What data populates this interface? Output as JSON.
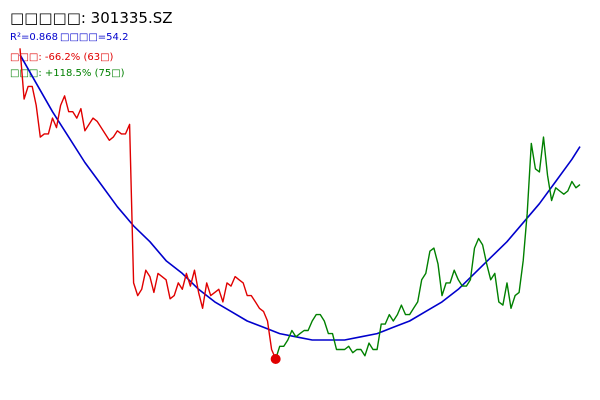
{
  "colors": {
    "background": "#ffffff",
    "decline_color": "#e00000",
    "rise_color": "#008000",
    "fit_color": "#0000cc",
    "fit_label_color": "#0000cc",
    "placeholder_glyph_color": "#cccccc"
  },
  "chart_data": {
    "type": "line",
    "title": "□□□□□: 301335.SZ",
    "annotations": {
      "fit_r2": "R²=0.868",
      "fit_extra": "□□□□=54.2",
      "decline_label": "□□□: -66.2% (63□)",
      "rise_label": "□□□: +118.5% (75□)"
    },
    "x_range": [
      0,
      138
    ],
    "y_range": [
      0,
      100
    ],
    "axes_visible": false,
    "grid": false,
    "legend": "none",
    "low_marker": {
      "index": 63,
      "value": 0,
      "color": "#e00000"
    },
    "series": [
      {
        "name": "decline",
        "color": "#e00000",
        "x": [
          0,
          1,
          2,
          3,
          4,
          5,
          6,
          7,
          8,
          9,
          10,
          11,
          12,
          13,
          14,
          15,
          16,
          17,
          18,
          19,
          20,
          21,
          22,
          23,
          24,
          25,
          26,
          27,
          28,
          29,
          30,
          31,
          32,
          33,
          34,
          35,
          36,
          37,
          38,
          39,
          40,
          41,
          42,
          43,
          44,
          45,
          46,
          47,
          48,
          49,
          50,
          51,
          52,
          53,
          54,
          55,
          56,
          57,
          58,
          59,
          60,
          61,
          62,
          63
        ],
        "y": [
          98,
          82,
          86,
          86,
          80,
          70,
          71,
          71,
          76,
          73,
          80,
          83,
          78,
          78,
          76,
          79,
          72,
          74,
          76,
          75,
          73,
          71,
          69,
          70,
          72,
          71,
          71,
          74,
          24,
          20,
          22,
          28,
          26,
          21,
          27,
          26,
          25,
          19,
          20,
          24,
          22,
          27,
          23,
          28,
          21,
          16,
          24,
          20,
          21,
          22,
          18,
          24,
          23,
          26,
          25,
          24,
          20,
          20,
          18,
          16,
          15,
          12,
          3,
          0
        ]
      },
      {
        "name": "rise",
        "color": "#008000",
        "x": [
          63,
          64,
          65,
          66,
          67,
          68,
          69,
          70,
          71,
          72,
          73,
          74,
          75,
          76,
          77,
          78,
          79,
          80,
          81,
          82,
          83,
          84,
          85,
          86,
          87,
          88,
          89,
          90,
          91,
          92,
          93,
          94,
          95,
          96,
          97,
          98,
          99,
          100,
          101,
          102,
          103,
          104,
          105,
          106,
          107,
          108,
          109,
          110,
          111,
          112,
          113,
          114,
          115,
          116,
          117,
          118,
          119,
          120,
          121,
          122,
          123,
          124,
          125,
          126,
          127,
          128,
          129,
          130,
          131,
          132,
          133,
          134,
          135,
          136,
          137,
          138
        ],
        "y": [
          0,
          4,
          4,
          6,
          9,
          7,
          8,
          9,
          9,
          12,
          14,
          14,
          12,
          8,
          8,
          3,
          3,
          3,
          4,
          2,
          3,
          3,
          1,
          5,
          3,
          3,
          11,
          11,
          14,
          12,
          14,
          17,
          14,
          14,
          16,
          18,
          25,
          27,
          34,
          35,
          30,
          20,
          24,
          24,
          28,
          25,
          23,
          23,
          25,
          35,
          38,
          36,
          30,
          25,
          27,
          18,
          17,
          24,
          16,
          20,
          21,
          31,
          46,
          68,
          60,
          59,
          70,
          58,
          50,
          54,
          53,
          52,
          53,
          56,
          54,
          55
        ]
      },
      {
        "name": "fit",
        "color": "#0000cc",
        "x": [
          0,
          4,
          8,
          12,
          16,
          20,
          24,
          28,
          32,
          36,
          40,
          44,
          48,
          52,
          56,
          60,
          64,
          68,
          72,
          76,
          80,
          84,
          88,
          92,
          96,
          100,
          104,
          108,
          112,
          116,
          120,
          124,
          128,
          132,
          136,
          138
        ],
        "y": [
          96,
          87,
          78,
          70,
          62,
          55,
          48,
          42,
          37,
          31,
          27,
          22,
          18,
          15,
          12,
          10,
          8,
          7,
          6,
          6,
          6,
          7,
          8,
          10,
          12,
          15,
          18,
          22,
          27,
          32,
          37,
          43,
          49,
          56,
          63,
          67
        ]
      }
    ]
  }
}
